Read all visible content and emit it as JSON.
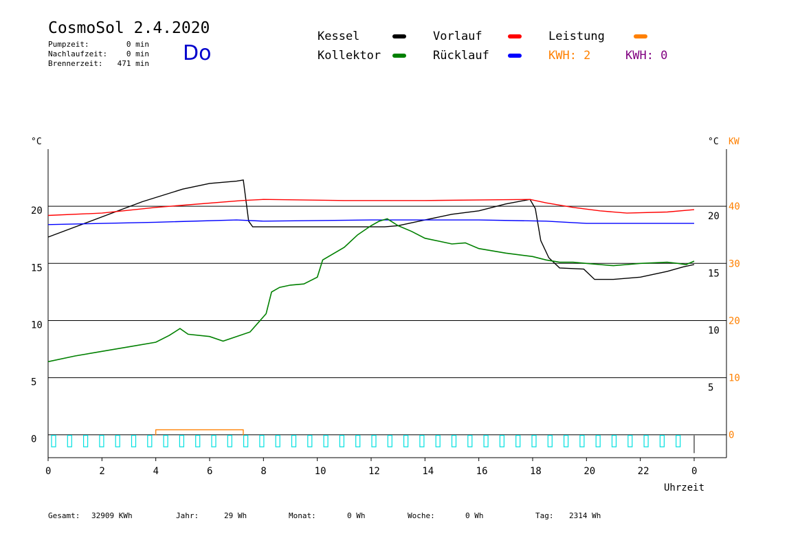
{
  "header": {
    "title": "CosmoSol 2.4.2020",
    "day": "Do",
    "info": [
      {
        "label": "Pumpzeit:",
        "value": "0 min"
      },
      {
        "label": "Nachlaufzeit:",
        "value": "0 min"
      },
      {
        "label": "Brennerzeit:",
        "value": "471 min"
      }
    ]
  },
  "legend": {
    "items": [
      {
        "label": "Kessel",
        "color": "#000000"
      },
      {
        "label": "Kollektor",
        "color": "#008000"
      },
      {
        "label": "Vorlauf",
        "color": "#ff0000"
      },
      {
        "label": "Rücklauf",
        "color": "#0000ff"
      },
      {
        "label": "Leistung",
        "color": "#ff8000"
      }
    ],
    "kwh": [
      {
        "text": "KWH: 2",
        "color": "#ff8000"
      },
      {
        "text": "KWH: 0",
        "color": "#800080"
      }
    ]
  },
  "footer": [
    {
      "label": "Gesamt:",
      "value": "32909 KWh"
    },
    {
      "label": "Jahr:",
      "value": "29 Wh"
    },
    {
      "label": "Monat:",
      "value": "0 Wh"
    },
    {
      "label": "Woche:",
      "value": "0 Wh"
    },
    {
      "label": "Tag:",
      "value": "2314 Wh"
    }
  ],
  "chart_data": {
    "type": "line",
    "xlabel": "Uhrzeit",
    "ylabel_left": "°C",
    "ylabel_right": [
      "°C",
      "KW"
    ],
    "xlim": [
      0,
      24
    ],
    "ylim": [
      -2,
      25
    ],
    "ylim_kw": [
      -4,
      50
    ],
    "x_ticks": [
      "0",
      "2",
      "4",
      "6",
      "8",
      "10",
      "12",
      "14",
      "16",
      "18",
      "20",
      "22",
      "0"
    ],
    "y_ticks_left": [
      "0",
      "5",
      "10",
      "15",
      "20"
    ],
    "y_ticks_right": [
      "5",
      "10",
      "15",
      "20"
    ],
    "y_ticks_kw": [
      "0",
      "10",
      "20",
      "30",
      "40"
    ],
    "grid": "horizontal",
    "series": [
      {
        "name": "Kessel",
        "color": "#000000",
        "points": [
          [
            0,
            17.3
          ],
          [
            3.5,
            20.4
          ],
          [
            5,
            21.5
          ],
          [
            6,
            22
          ],
          [
            7,
            22.2
          ],
          [
            7.25,
            22.3
          ],
          [
            7.45,
            18.7
          ],
          [
            7.6,
            18.2
          ],
          [
            12.5,
            18.2
          ],
          [
            13,
            18.3
          ],
          [
            14,
            18.8
          ],
          [
            15,
            19.3
          ],
          [
            16,
            19.6
          ],
          [
            17,
            20.2
          ],
          [
            17.9,
            20.6
          ],
          [
            18.1,
            19.8
          ],
          [
            18.3,
            17.0
          ],
          [
            18.6,
            15.5
          ],
          [
            19,
            14.6
          ],
          [
            19.9,
            14.5
          ],
          [
            20.3,
            13.6
          ],
          [
            21,
            13.6
          ],
          [
            22,
            13.8
          ],
          [
            23,
            14.3
          ],
          [
            23.6,
            14.7
          ],
          [
            24,
            14.9
          ]
        ]
      },
      {
        "name": "Vorlauf",
        "color": "#ff0000",
        "points": [
          [
            0,
            19.2
          ],
          [
            2,
            19.4
          ],
          [
            4,
            19.9
          ],
          [
            7.2,
            20.5
          ],
          [
            8,
            20.6
          ],
          [
            11,
            20.5
          ],
          [
            14,
            20.5
          ],
          [
            17.9,
            20.6
          ],
          [
            18.5,
            20.3
          ],
          [
            19.5,
            19.9
          ],
          [
            20.5,
            19.6
          ],
          [
            21.5,
            19.4
          ],
          [
            23,
            19.5
          ],
          [
            24,
            19.7
          ]
        ]
      },
      {
        "name": "Rücklauf",
        "color": "#0000ff",
        "points": [
          [
            0,
            18.4
          ],
          [
            4,
            18.6
          ],
          [
            7,
            18.8
          ],
          [
            8,
            18.7
          ],
          [
            12,
            18.8
          ],
          [
            16,
            18.8
          ],
          [
            18.5,
            18.7
          ],
          [
            20,
            18.5
          ],
          [
            24,
            18.5
          ]
        ]
      },
      {
        "name": "Kollektor",
        "color": "#008000",
        "points": [
          [
            0,
            6.4
          ],
          [
            1,
            6.9
          ],
          [
            2,
            7.3
          ],
          [
            3,
            7.7
          ],
          [
            4,
            8.1
          ],
          [
            4.5,
            8.7
          ],
          [
            4.9,
            9.3
          ],
          [
            5.2,
            8.8
          ],
          [
            6,
            8.6
          ],
          [
            6.5,
            8.2
          ],
          [
            7,
            8.6
          ],
          [
            7.5,
            9.0
          ],
          [
            7.8,
            9.8
          ],
          [
            8.1,
            10.6
          ],
          [
            8.3,
            12.5
          ],
          [
            8.6,
            12.9
          ],
          [
            9,
            13.1
          ],
          [
            9.5,
            13.2
          ],
          [
            10,
            13.8
          ],
          [
            10.2,
            15.3
          ],
          [
            11,
            16.4
          ],
          [
            11.5,
            17.5
          ],
          [
            12,
            18.3
          ],
          [
            12.3,
            18.7
          ],
          [
            12.6,
            18.9
          ],
          [
            13,
            18.3
          ],
          [
            13.5,
            17.8
          ],
          [
            14,
            17.2
          ],
          [
            15,
            16.7
          ],
          [
            15.5,
            16.8
          ],
          [
            16,
            16.3
          ],
          [
            17,
            15.9
          ],
          [
            18,
            15.6
          ],
          [
            18.5,
            15.3
          ],
          [
            19,
            15.1
          ],
          [
            19.5,
            15.1
          ],
          [
            20,
            15.0
          ],
          [
            20.5,
            14.9
          ],
          [
            21,
            14.8
          ],
          [
            21.5,
            14.9
          ],
          [
            22,
            15.0
          ],
          [
            23,
            15.1
          ],
          [
            23.4,
            15.0
          ],
          [
            23.7,
            14.9
          ],
          [
            24,
            15.2
          ]
        ]
      }
    ],
    "leistung": {
      "name": "Leistung",
      "color": "#ff8000",
      "x": [
        4.0,
        7.25
      ],
      "kw": 0.4
    },
    "pump_pattern": {
      "color": "#00e0e0"
    }
  }
}
